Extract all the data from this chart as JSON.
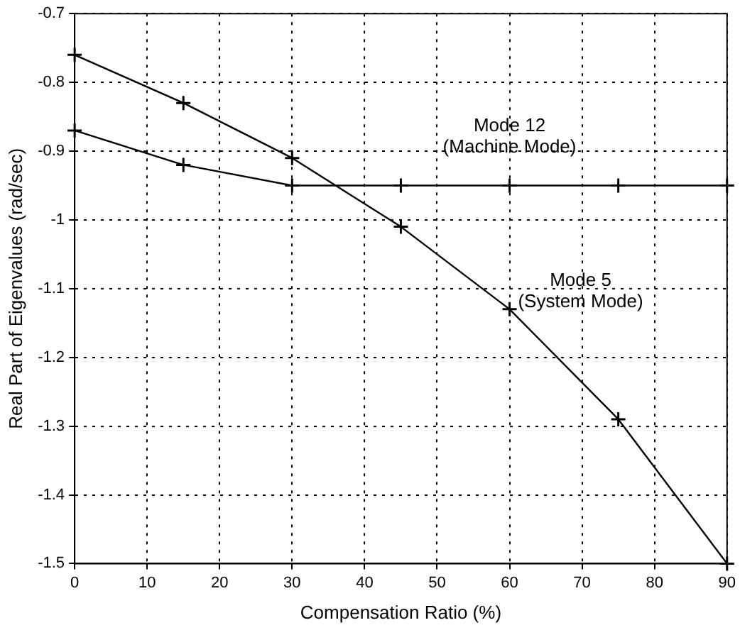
{
  "chart_data": {
    "type": "line",
    "xlabel": "Compensation Ratio (%)",
    "ylabel": "Real Part of Eigenvalues (rad/sec)",
    "x": [
      0,
      15,
      30,
      45,
      60,
      75,
      90
    ],
    "series": [
      {
        "name": "Mode 5\n(System Mode)",
        "color": "#000000",
        "values": [
          -0.76,
          -0.83,
          -0.91,
          -1.01,
          -1.13,
          -1.29,
          -1.5
        ]
      },
      {
        "name": "Mode 12\n(Machine Mode)",
        "color": "#000000",
        "values": [
          -0.87,
          -0.92,
          -0.95,
          -0.95,
          -0.95,
          -0.95,
          -0.95
        ]
      }
    ],
    "xlim": [
      0,
      90
    ],
    "xticks": [
      0,
      10,
      20,
      30,
      40,
      50,
      60,
      70,
      80,
      90
    ],
    "ylim": [
      -1.5,
      -0.7
    ],
    "yticks": [
      -1.5,
      -1.4,
      -1.3,
      -1.2,
      -1.1,
      -1,
      -0.9,
      -0.8,
      -0.7
    ],
    "grid": true,
    "line_style": "solid",
    "marker": "cross",
    "legend": false
  }
}
